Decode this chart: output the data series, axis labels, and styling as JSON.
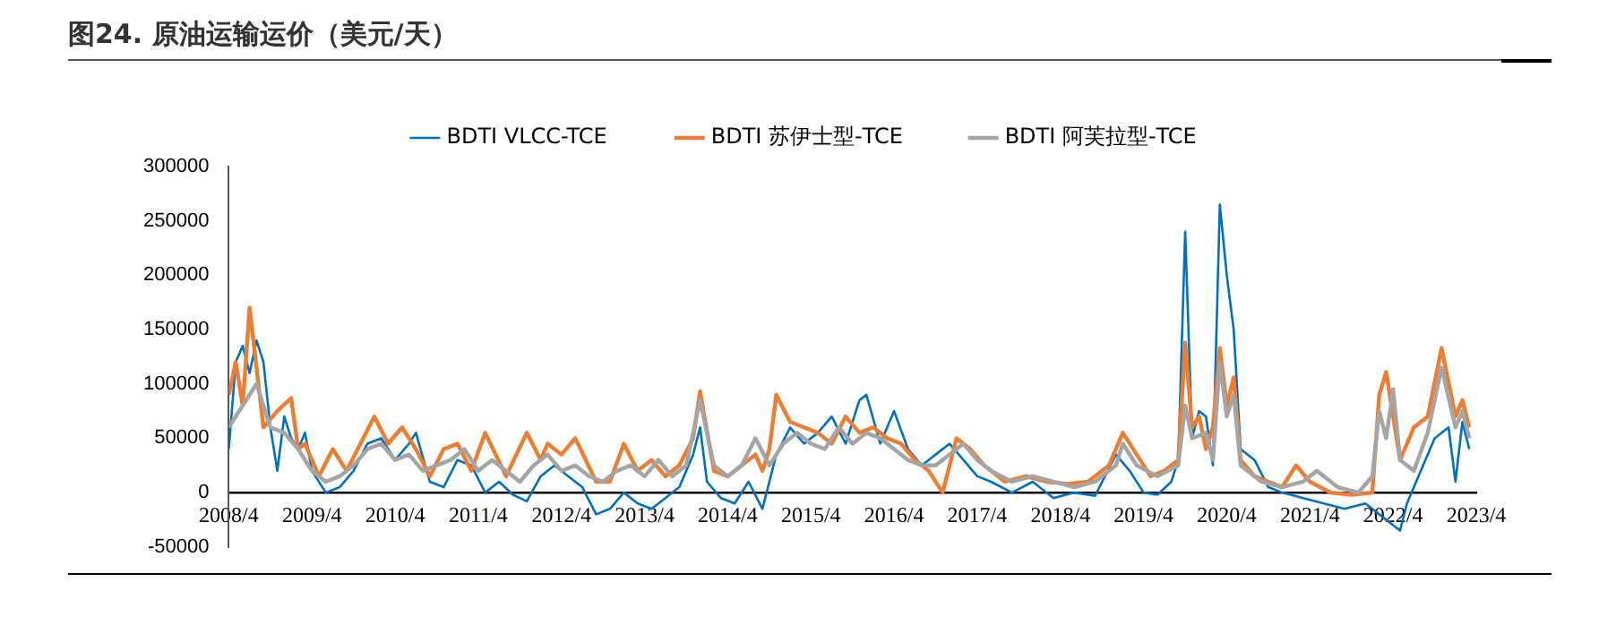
{
  "chart_data": {
    "type": "line",
    "title": "图24. 原油运输运价（美元/天）",
    "legend": "top",
    "marker": "none",
    "line_style": "solid",
    "xlim": [
      "2008-04",
      "2023-04"
    ],
    "xticks": [
      {
        "value": "2008-04",
        "label": "2008/4"
      },
      {
        "value": "2009-04",
        "label": "2009/4"
      },
      {
        "value": "2010-04",
        "label": "2010/4"
      },
      {
        "value": "2011-04",
        "label": "2011/4"
      },
      {
        "value": "2012-04",
        "label": "2012/4"
      },
      {
        "value": "2013-04",
        "label": "2013/4"
      },
      {
        "value": "2014-04",
        "label": "2014/4"
      },
      {
        "value": "2015-04",
        "label": "2015/4"
      },
      {
        "value": "2016-04",
        "label": "2016/4"
      },
      {
        "value": "2017-04",
        "label": "2017/4"
      },
      {
        "value": "2018-04",
        "label": "2018/4"
      },
      {
        "value": "2019-04",
        "label": "2019/4"
      },
      {
        "value": "2020-04",
        "label": "2020/4"
      },
      {
        "value": "2021-04",
        "label": "2021/4"
      },
      {
        "value": "2022-04",
        "label": "2022/4"
      },
      {
        "value": "2023-04",
        "label": "2023/4"
      }
    ],
    "ylim": [
      -50000,
      300000
    ],
    "yticks": [
      -50000,
      0,
      50000,
      100000,
      150000,
      200000,
      250000,
      300000
    ],
    "series": [
      {
        "name": "BDTI VLCC-TCE",
        "color": "#0070c0",
        "x": [
          "2008-04",
          "2008-05",
          "2008-06",
          "2008-07",
          "2008-08",
          "2008-09",
          "2008-10",
          "2008-11",
          "2008-12",
          "2009-01",
          "2009-02",
          "2009-03",
          "2009-04",
          "2009-06",
          "2009-08",
          "2009-10",
          "2009-12",
          "2010-02",
          "2010-04",
          "2010-06",
          "2010-07",
          "2010-09",
          "2010-11",
          "2011-01",
          "2011-03",
          "2011-05",
          "2011-07",
          "2011-09",
          "2011-11",
          "2012-01",
          "2012-03",
          "2012-05",
          "2012-07",
          "2012-09",
          "2012-11",
          "2013-01",
          "2013-03",
          "2013-05",
          "2013-07",
          "2013-09",
          "2013-11",
          "2013-12",
          "2014-01",
          "2014-03",
          "2014-05",
          "2014-07",
          "2014-09",
          "2014-11",
          "2015-01",
          "2015-03",
          "2015-05",
          "2015-07",
          "2015-09",
          "2015-11",
          "2015-12",
          "2016-02",
          "2016-04",
          "2016-06",
          "2016-08",
          "2016-10",
          "2016-12",
          "2017-02",
          "2017-04",
          "2017-06",
          "2017-09",
          "2017-12",
          "2018-03",
          "2018-06",
          "2018-09",
          "2018-12",
          "2019-02",
          "2019-04",
          "2019-06",
          "2019-08",
          "2019-09",
          "2019-10",
          "2019-11",
          "2019-12",
          "2020-01",
          "2020-02",
          "2020-03",
          "2020-04",
          "2020-05",
          "2020-06",
          "2020-08",
          "2020-10",
          "2020-12",
          "2021-03",
          "2021-06",
          "2021-09",
          "2021-12",
          "2022-02",
          "2022-04",
          "2022-05",
          "2022-06",
          "2022-08",
          "2022-10",
          "2022-12",
          "2023-01",
          "2023-02",
          "2023-03"
        ],
        "values": [
          40000,
          120000,
          135000,
          110000,
          140000,
          120000,
          60000,
          20000,
          70000,
          50000,
          40000,
          55000,
          20000,
          0,
          5000,
          20000,
          45000,
          50000,
          30000,
          45000,
          55000,
          10000,
          5000,
          30000,
          25000,
          0,
          10000,
          -2000,
          -8000,
          15000,
          25000,
          15000,
          5000,
          -20000,
          -15000,
          0,
          -10000,
          -15000,
          -5000,
          5000,
          35000,
          60000,
          10000,
          -5000,
          -10000,
          10000,
          -15000,
          35000,
          60000,
          45000,
          55000,
          70000,
          45000,
          85000,
          90000,
          45000,
          75000,
          40000,
          25000,
          35000,
          45000,
          30000,
          15000,
          10000,
          0,
          10000,
          -5000,
          0,
          -3000,
          35000,
          20000,
          0,
          -2000,
          10000,
          30000,
          240000,
          50000,
          75000,
          70000,
          25000,
          265000,
          200000,
          150000,
          40000,
          30000,
          5000,
          0,
          -5000,
          -10000,
          -15000,
          -10000,
          -20000,
          -30000,
          -35000,
          -10000,
          20000,
          50000,
          60000,
          10000,
          65000,
          40000
        ]
      },
      {
        "name": "BDTI 苏伊士型-TCE",
        "color": "#ed7d31",
        "x": [
          "2008-04",
          "2008-05",
          "2008-06",
          "2008-07",
          "2008-09",
          "2008-11",
          "2009-01",
          "2009-02",
          "2009-03",
          "2009-05",
          "2009-07",
          "2009-09",
          "2009-11",
          "2010-01",
          "2010-03",
          "2010-05",
          "2010-07",
          "2010-09",
          "2010-11",
          "2011-01",
          "2011-03",
          "2011-05",
          "2011-08",
          "2011-11",
          "2012-01",
          "2012-02",
          "2012-04",
          "2012-06",
          "2012-09",
          "2012-11",
          "2013-01",
          "2013-03",
          "2013-05",
          "2013-07",
          "2013-09",
          "2013-11",
          "2013-12",
          "2014-02",
          "2014-04",
          "2014-06",
          "2014-08",
          "2014-09",
          "2014-10",
          "2014-11",
          "2015-01",
          "2015-03",
          "2015-05",
          "2015-07",
          "2015-09",
          "2015-11",
          "2016-01",
          "2016-03",
          "2016-05",
          "2016-07",
          "2016-09",
          "2016-11",
          "2017-01",
          "2017-03",
          "2017-05",
          "2017-08",
          "2017-11",
          "2018-02",
          "2018-05",
          "2018-08",
          "2018-11",
          "2019-01",
          "2019-03",
          "2019-05",
          "2019-07",
          "2019-09",
          "2019-10",
          "2019-11",
          "2019-12",
          "2020-01",
          "2020-02",
          "2020-03",
          "2020-04",
          "2020-05",
          "2020-06",
          "2020-08",
          "2020-10",
          "2020-12",
          "2021-02",
          "2021-04",
          "2021-07",
          "2021-10",
          "2022-01",
          "2022-02",
          "2022-03",
          "2022-05",
          "2022-07",
          "2022-09",
          "2022-11",
          "2023-01",
          "2023-02",
          "2023-03"
        ],
        "values": [
          90000,
          120000,
          80000,
          170000,
          60000,
          75000,
          87000,
          40000,
          45000,
          15000,
          40000,
          20000,
          45000,
          70000,
          45000,
          60000,
          40000,
          15000,
          40000,
          45000,
          20000,
          55000,
          15000,
          55000,
          30000,
          45000,
          35000,
          50000,
          10000,
          10000,
          45000,
          20000,
          30000,
          15000,
          25000,
          50000,
          93000,
          20000,
          15000,
          25000,
          35000,
          20000,
          40000,
          90000,
          65000,
          60000,
          55000,
          45000,
          70000,
          55000,
          60000,
          50000,
          45000,
          30000,
          20000,
          0,
          50000,
          40000,
          25000,
          10000,
          15000,
          10000,
          8000,
          10000,
          25000,
          55000,
          35000,
          15000,
          20000,
          30000,
          138000,
          60000,
          70000,
          40000,
          60000,
          133000,
          80000,
          106000,
          30000,
          15000,
          10000,
          5000,
          25000,
          10000,
          0,
          -2000,
          0,
          90000,
          111000,
          30000,
          60000,
          70000,
          133000,
          70000,
          85000,
          60000
        ]
      },
      {
        "name": "BDTI 阿芙拉型-TCE",
        "color": "#a5a5a5",
        "x": [
          "2008-04",
          "2008-06",
          "2008-08",
          "2008-10",
          "2008-12",
          "2009-02",
          "2009-04",
          "2009-06",
          "2009-08",
          "2009-10",
          "2009-12",
          "2010-02",
          "2010-04",
          "2010-06",
          "2010-08",
          "2010-10",
          "2010-12",
          "2011-02",
          "2011-04",
          "2011-06",
          "2011-08",
          "2011-10",
          "2011-12",
          "2012-02",
          "2012-04",
          "2012-06",
          "2012-08",
          "2012-10",
          "2012-12",
          "2013-02",
          "2013-04",
          "2013-06",
          "2013-08",
          "2013-10",
          "2013-12",
          "2014-02",
          "2014-04",
          "2014-06",
          "2014-08",
          "2014-10",
          "2014-12",
          "2015-02",
          "2015-04",
          "2015-06",
          "2015-08",
          "2015-10",
          "2015-12",
          "2016-02",
          "2016-04",
          "2016-06",
          "2016-08",
          "2016-10",
          "2016-12",
          "2017-02",
          "2017-04",
          "2017-06",
          "2017-09",
          "2017-12",
          "2018-03",
          "2018-06",
          "2018-09",
          "2018-12",
          "2019-01",
          "2019-03",
          "2019-06",
          "2019-09",
          "2019-10",
          "2019-11",
          "2020-01",
          "2020-02",
          "2020-03",
          "2020-04",
          "2020-05",
          "2020-06",
          "2020-09",
          "2020-12",
          "2021-03",
          "2021-05",
          "2021-08",
          "2021-11",
          "2022-01",
          "2022-02",
          "2022-03",
          "2022-04",
          "2022-05",
          "2022-07",
          "2022-09",
          "2022-11",
          "2023-01",
          "2023-02",
          "2023-03"
        ],
        "values": [
          60000,
          80000,
          100000,
          60000,
          55000,
          40000,
          20000,
          10000,
          15000,
          25000,
          40000,
          45000,
          30000,
          35000,
          20000,
          25000,
          30000,
          40000,
          20000,
          30000,
          20000,
          10000,
          25000,
          35000,
          20000,
          25000,
          15000,
          10000,
          20000,
          25000,
          15000,
          30000,
          15000,
          25000,
          85000,
          25000,
          15000,
          25000,
          50000,
          25000,
          45000,
          55000,
          45000,
          40000,
          60000,
          45000,
          55000,
          50000,
          40000,
          30000,
          25000,
          25000,
          35000,
          45000,
          30000,
          20000,
          10000,
          15000,
          10000,
          5000,
          10000,
          25000,
          45000,
          25000,
          15000,
          25000,
          80000,
          50000,
          55000,
          30000,
          120000,
          70000,
          90000,
          25000,
          10000,
          5000,
          10000,
          20000,
          5000,
          0,
          15000,
          75000,
          50000,
          95000,
          30000,
          20000,
          55000,
          115000,
          60000,
          75000,
          50000
        ]
      }
    ]
  }
}
